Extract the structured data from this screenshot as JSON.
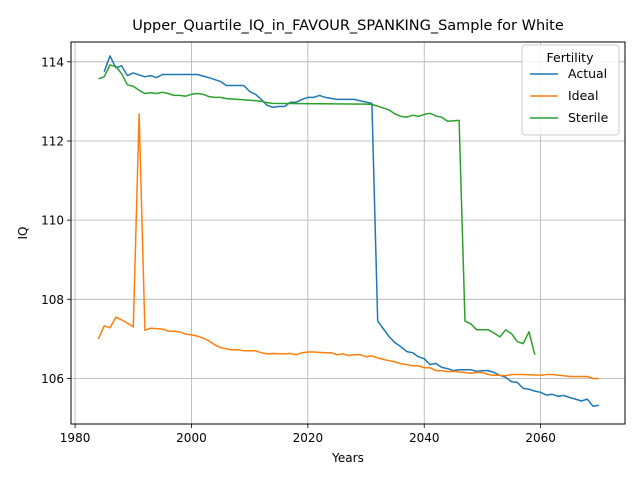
{
  "chart_data": {
    "type": "line",
    "title": "Upper_Quartile_IQ_in_FAVOUR_SPANKING_Sample for White",
    "xlabel": "Years",
    "ylabel": "IQ",
    "xlim": [
      1979.3,
      2074.5
    ],
    "ylim": [
      104.85,
      114.5
    ],
    "xticks": [
      1980,
      2000,
      2020,
      2040,
      2060
    ],
    "yticks": [
      106,
      108,
      110,
      112,
      114
    ],
    "grid": true,
    "legend": {
      "title": "Fertility",
      "placement": "top-right"
    },
    "series": [
      {
        "name": "Actual",
        "color": "#1f77b4",
        "points": [
          [
            1985,
            113.75
          ],
          [
            1986,
            114.15
          ],
          [
            1987,
            113.85
          ],
          [
            1988,
            113.9
          ],
          [
            1989,
            113.65
          ],
          [
            1990,
            113.72
          ],
          [
            1991,
            113.67
          ],
          [
            1992,
            113.62
          ],
          [
            1993,
            113.65
          ],
          [
            1994,
            113.6
          ],
          [
            1995,
            113.68
          ],
          [
            1997,
            113.68
          ],
          [
            2000,
            113.68
          ],
          [
            2001,
            113.68
          ],
          [
            2003,
            113.6
          ],
          [
            2005,
            113.5
          ],
          [
            2006,
            113.4
          ],
          [
            2008,
            113.4
          ],
          [
            2009,
            113.4
          ],
          [
            2010,
            113.25
          ],
          [
            2011,
            113.18
          ],
          [
            2012,
            113.05
          ],
          [
            2013,
            112.9
          ],
          [
            2014,
            112.85
          ],
          [
            2015,
            112.87
          ],
          [
            2016,
            112.87
          ],
          [
            2017,
            112.98
          ],
          [
            2018,
            112.98
          ],
          [
            2019,
            113.05
          ],
          [
            2020,
            113.1
          ],
          [
            2021,
            113.1
          ],
          [
            2022,
            113.15
          ],
          [
            2023,
            113.1
          ],
          [
            2025,
            113.05
          ],
          [
            2026,
            113.05
          ],
          [
            2028,
            113.05
          ],
          [
            2030,
            112.98
          ],
          [
            2031,
            112.95
          ],
          [
            2032,
            107.45
          ],
          [
            2033,
            107.25
          ],
          [
            2034,
            107.05
          ],
          [
            2035,
            106.9
          ],
          [
            2036,
            106.8
          ],
          [
            2037,
            106.68
          ],
          [
            2038,
            106.65
          ],
          [
            2039,
            106.55
          ],
          [
            2040,
            106.5
          ],
          [
            2041,
            106.35
          ],
          [
            2042,
            106.38
          ],
          [
            2043,
            106.28
          ],
          [
            2044,
            106.25
          ],
          [
            2045,
            106.2
          ],
          [
            2046,
            106.22
          ],
          [
            2048,
            106.22
          ],
          [
            2049,
            106.18
          ],
          [
            2050,
            106.2
          ],
          [
            2051,
            106.2
          ],
          [
            2052,
            106.15
          ],
          [
            2053,
            106.08
          ],
          [
            2054,
            106.03
          ],
          [
            2055,
            105.92
          ],
          [
            2056,
            105.9
          ],
          [
            2057,
            105.75
          ],
          [
            2058,
            105.73
          ],
          [
            2059,
            105.68
          ],
          [
            2060,
            105.65
          ],
          [
            2061,
            105.58
          ],
          [
            2062,
            105.6
          ],
          [
            2063,
            105.55
          ],
          [
            2064,
            105.57
          ],
          [
            2065,
            105.52
          ],
          [
            2066,
            105.48
          ],
          [
            2067,
            105.43
          ],
          [
            2068,
            105.48
          ],
          [
            2069,
            105.3
          ],
          [
            2070,
            105.32
          ]
        ]
      },
      {
        "name": "Ideal",
        "color": "#ff7f0e",
        "points": [
          [
            1984,
            107.0
          ],
          [
            1985,
            107.33
          ],
          [
            1986,
            107.28
          ],
          [
            1987,
            107.55
          ],
          [
            1988,
            107.48
          ],
          [
            1989,
            107.4
          ],
          [
            1990,
            107.3
          ],
          [
            1991,
            112.68
          ],
          [
            1992,
            107.22
          ],
          [
            1993,
            107.27
          ],
          [
            1995,
            107.25
          ],
          [
            1996,
            107.2
          ],
          [
            1998,
            107.18
          ],
          [
            1999,
            107.12
          ],
          [
            2000,
            107.1
          ],
          [
            2001,
            107.07
          ],
          [
            2002,
            107.02
          ],
          [
            2003,
            106.95
          ],
          [
            2004,
            106.85
          ],
          [
            2005,
            106.78
          ],
          [
            2006,
            106.75
          ],
          [
            2007,
            106.72
          ],
          [
            2008,
            106.73
          ],
          [
            2009,
            106.7
          ],
          [
            2011,
            106.7
          ],
          [
            2012,
            106.65
          ],
          [
            2013,
            106.62
          ],
          [
            2014,
            106.63
          ],
          [
            2016,
            106.62
          ],
          [
            2017,
            106.63
          ],
          [
            2018,
            106.6
          ],
          [
            2019,
            106.65
          ],
          [
            2020,
            106.67
          ],
          [
            2021,
            106.67
          ],
          [
            2023,
            106.65
          ],
          [
            2024,
            106.65
          ],
          [
            2025,
            106.6
          ],
          [
            2026,
            106.62
          ],
          [
            2027,
            106.58
          ],
          [
            2028,
            106.6
          ],
          [
            2029,
            106.6
          ],
          [
            2030,
            106.55
          ],
          [
            2031,
            106.57
          ],
          [
            2032,
            106.52
          ],
          [
            2033,
            106.48
          ],
          [
            2034,
            106.45
          ],
          [
            2035,
            106.42
          ],
          [
            2036,
            106.37
          ],
          [
            2037,
            106.35
          ],
          [
            2038,
            106.32
          ],
          [
            2039,
            106.32
          ],
          [
            2040,
            106.27
          ],
          [
            2041,
            106.27
          ],
          [
            2042,
            106.2
          ],
          [
            2043,
            106.2
          ],
          [
            2044,
            106.17
          ],
          [
            2045,
            106.18
          ],
          [
            2047,
            106.15
          ],
          [
            2048,
            106.13
          ],
          [
            2049,
            106.15
          ],
          [
            2050,
            106.15
          ],
          [
            2051,
            106.1
          ],
          [
            2052,
            106.08
          ],
          [
            2053,
            106.08
          ],
          [
            2054,
            106.07
          ],
          [
            2055,
            106.1
          ],
          [
            2057,
            106.1
          ],
          [
            2060,
            106.08
          ],
          [
            2061,
            106.1
          ],
          [
            2062,
            106.1
          ],
          [
            2063,
            106.08
          ],
          [
            2064,
            106.07
          ],
          [
            2065,
            106.05
          ],
          [
            2066,
            106.05
          ],
          [
            2067,
            106.05
          ],
          [
            2068,
            106.05
          ],
          [
            2069,
            106.0
          ],
          [
            2070,
            106.0
          ]
        ]
      },
      {
        "name": "Sterile",
        "color": "#2ca02c",
        "points": [
          [
            1984,
            113.57
          ],
          [
            1985,
            113.62
          ],
          [
            1986,
            113.92
          ],
          [
            1987,
            113.88
          ],
          [
            1988,
            113.7
          ],
          [
            1989,
            113.42
          ],
          [
            1990,
            113.38
          ],
          [
            1991,
            113.28
          ],
          [
            1992,
            113.2
          ],
          [
            1993,
            113.22
          ],
          [
            1994,
            113.2
          ],
          [
            1995,
            113.23
          ],
          [
            1996,
            113.2
          ],
          [
            1997,
            113.15
          ],
          [
            1998,
            113.15
          ],
          [
            1999,
            113.13
          ],
          [
            2000,
            113.18
          ],
          [
            2001,
            113.2
          ],
          [
            2002,
            113.18
          ],
          [
            2003,
            113.12
          ],
          [
            2004,
            113.1
          ],
          [
            2005,
            113.1
          ],
          [
            2006,
            113.07
          ],
          [
            2008,
            113.05
          ],
          [
            2010,
            113.03
          ],
          [
            2011,
            113.02
          ],
          [
            2012,
            113.0
          ],
          [
            2013,
            112.97
          ],
          [
            2014,
            112.95
          ],
          [
            2030,
            112.93
          ],
          [
            2031,
            112.92
          ],
          [
            2032,
            112.88
          ],
          [
            2033,
            112.83
          ],
          [
            2034,
            112.78
          ],
          [
            2035,
            112.68
          ],
          [
            2036,
            112.62
          ],
          [
            2037,
            112.6
          ],
          [
            2038,
            112.65
          ],
          [
            2039,
            112.62
          ],
          [
            2040,
            112.67
          ],
          [
            2041,
            112.7
          ],
          [
            2042,
            112.63
          ],
          [
            2043,
            112.6
          ],
          [
            2044,
            112.5
          ],
          [
            2046,
            112.52
          ],
          [
            2047,
            107.45
          ],
          [
            2048,
            107.38
          ],
          [
            2049,
            107.23
          ],
          [
            2050,
            107.23
          ],
          [
            2051,
            107.23
          ],
          [
            2052,
            107.15
          ],
          [
            2053,
            107.05
          ],
          [
            2054,
            107.23
          ],
          [
            2055,
            107.13
          ],
          [
            2056,
            106.93
          ],
          [
            2057,
            106.88
          ],
          [
            2058,
            107.18
          ],
          [
            2059,
            106.6
          ]
        ]
      }
    ]
  }
}
